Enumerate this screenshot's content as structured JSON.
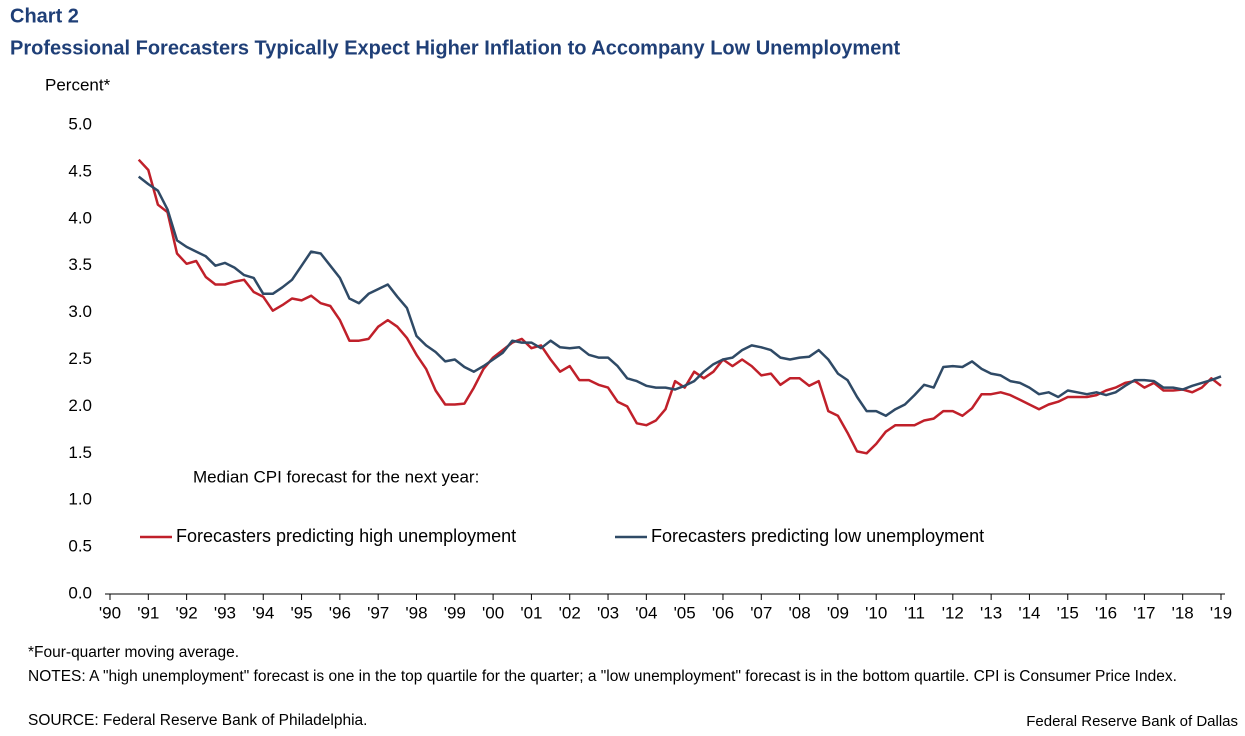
{
  "chart_data": {
    "type": "line",
    "title": "Chart 2",
    "subtitle": "Professional Forecasters Typically Expect Higher Inflation to Accompany Low Unemployment",
    "ylabel": "Percent*",
    "legend_title": "Median CPI forecast for the next year:",
    "footnotes": [
      "*Four-quarter moving average.",
      "NOTES: A \"high unemployment\"  forecast is one in the top quartile for the quarter; a \"low unemployment\"  forecast is in the bottom quartile. CPI is Consumer Price Index.",
      "SOURCE: Federal Reserve Bank of Philadelphia."
    ],
    "credit": "Federal Reserve Bank of Dallas",
    "x": [
      1990.75,
      1991,
      1991.25,
      1991.5,
      1991.75,
      1992,
      1992.25,
      1992.5,
      1992.75,
      1993,
      1993.25,
      1993.5,
      1993.75,
      1994,
      1994.25,
      1994.5,
      1994.75,
      1995,
      1995.25,
      1995.5,
      1995.75,
      1996,
      1996.25,
      1996.5,
      1996.75,
      1997,
      1997.25,
      1997.5,
      1997.75,
      1998,
      1998.25,
      1998.5,
      1998.75,
      1999,
      1999.25,
      1999.5,
      1999.75,
      2000,
      2000.25,
      2000.5,
      2000.75,
      2001,
      2001.25,
      2001.5,
      2001.75,
      2002,
      2002.25,
      2002.5,
      2002.75,
      2003,
      2003.25,
      2003.5,
      2003.75,
      2004,
      2004.25,
      2004.5,
      2004.75,
      2005,
      2005.25,
      2005.5,
      2005.75,
      2006,
      2006.25,
      2006.5,
      2006.75,
      2007,
      2007.25,
      2007.5,
      2007.75,
      2008,
      2008.25,
      2008.5,
      2008.75,
      2009,
      2009.25,
      2009.5,
      2009.75,
      2010,
      2010.25,
      2010.5,
      2010.75,
      2011,
      2011.25,
      2011.5,
      2011.75,
      2012,
      2012.25,
      2012.5,
      2012.75,
      2013,
      2013.25,
      2013.5,
      2013.75,
      2014,
      2014.25,
      2014.5,
      2014.75,
      2015,
      2015.25,
      2015.5,
      2015.75,
      2016,
      2016.25,
      2016.5,
      2016.75,
      2017,
      2017.25,
      2017.5,
      2017.75,
      2018,
      2018.25,
      2018.5,
      2018.75,
      2019
    ],
    "series": [
      {
        "name": "Forecasters predicting high unemployment",
        "color": "#c0202a",
        "values": [
          4.63,
          4.52,
          4.15,
          4.07,
          3.63,
          3.52,
          3.55,
          3.38,
          3.3,
          3.3,
          3.33,
          3.35,
          3.22,
          3.17,
          3.02,
          3.08,
          3.15,
          3.13,
          3.18,
          3.1,
          3.07,
          2.92,
          2.7,
          2.7,
          2.72,
          2.85,
          2.92,
          2.85,
          2.73,
          2.55,
          2.4,
          2.17,
          2.02,
          2.02,
          2.03,
          2.2,
          2.4,
          2.52,
          2.6,
          2.68,
          2.72,
          2.62,
          2.65,
          2.5,
          2.37,
          2.43,
          2.28,
          2.28,
          2.23,
          2.2,
          2.05,
          2.0,
          1.82,
          1.8,
          1.85,
          1.97,
          2.27,
          2.2,
          2.37,
          2.3,
          2.37,
          2.5,
          2.43,
          2.5,
          2.43,
          2.33,
          2.35,
          2.23,
          2.3,
          2.3,
          2.22,
          2.27,
          1.95,
          1.9,
          1.72,
          1.52,
          1.5,
          1.6,
          1.73,
          1.8,
          1.8,
          1.8,
          1.85,
          1.87,
          1.95,
          1.95,
          1.9,
          1.98,
          2.13,
          2.13,
          2.15,
          2.12,
          2.07,
          2.02,
          1.97,
          2.02,
          2.05,
          2.1,
          2.1,
          2.1,
          2.12,
          2.17,
          2.2,
          2.25,
          2.27,
          2.2,
          2.25,
          2.17,
          2.17,
          2.18,
          2.15,
          2.2,
          2.3,
          2.22
        ]
      },
      {
        "name": "Forecasters predicting low unemployment",
        "color": "#2f4a66",
        "values": [
          4.45,
          4.37,
          4.3,
          4.1,
          3.77,
          3.7,
          3.65,
          3.6,
          3.5,
          3.53,
          3.48,
          3.4,
          3.37,
          3.2,
          3.2,
          3.27,
          3.35,
          3.5,
          3.65,
          3.63,
          3.5,
          3.37,
          3.15,
          3.1,
          3.2,
          3.25,
          3.3,
          3.17,
          3.05,
          2.75,
          2.65,
          2.58,
          2.48,
          2.5,
          2.42,
          2.37,
          2.43,
          2.5,
          2.57,
          2.7,
          2.68,
          2.68,
          2.62,
          2.7,
          2.63,
          2.62,
          2.63,
          2.55,
          2.52,
          2.52,
          2.43,
          2.3,
          2.27,
          2.22,
          2.2,
          2.2,
          2.18,
          2.22,
          2.27,
          2.37,
          2.45,
          2.5,
          2.52,
          2.6,
          2.65,
          2.63,
          2.6,
          2.52,
          2.5,
          2.52,
          2.53,
          2.6,
          2.5,
          2.35,
          2.28,
          2.1,
          1.95,
          1.95,
          1.9,
          1.97,
          2.02,
          2.12,
          2.23,
          2.2,
          2.42,
          2.43,
          2.42,
          2.48,
          2.4,
          2.35,
          2.33,
          2.27,
          2.25,
          2.2,
          2.13,
          2.15,
          2.1,
          2.17,
          2.15,
          2.13,
          2.15,
          2.12,
          2.15,
          2.22,
          2.28,
          2.28,
          2.27,
          2.2,
          2.2,
          2.18,
          2.22,
          2.25,
          2.28,
          2.32
        ]
      }
    ],
    "xlim": [
      1990,
      2019
    ],
    "xticks": [
      {
        "value": 1990,
        "label": "'90"
      },
      {
        "value": 1991,
        "label": "'91"
      },
      {
        "value": 1992,
        "label": "'92"
      },
      {
        "value": 1993,
        "label": "'93"
      },
      {
        "value": 1994,
        "label": "'94"
      },
      {
        "value": 1995,
        "label": "'95"
      },
      {
        "value": 1996,
        "label": "'96"
      },
      {
        "value": 1997,
        "label": "'97"
      },
      {
        "value": 1998,
        "label": "'98"
      },
      {
        "value": 1999,
        "label": "'99"
      },
      {
        "value": 2000,
        "label": "'00"
      },
      {
        "value": 2001,
        "label": "'01"
      },
      {
        "value": 2002,
        "label": "'02"
      },
      {
        "value": 2003,
        "label": "'03"
      },
      {
        "value": 2004,
        "label": "'04"
      },
      {
        "value": 2005,
        "label": "'05"
      },
      {
        "value": 2006,
        "label": "'06"
      },
      {
        "value": 2007,
        "label": "'07"
      },
      {
        "value": 2008,
        "label": "'08"
      },
      {
        "value": 2009,
        "label": "'09"
      },
      {
        "value": 2010,
        "label": "'10"
      },
      {
        "value": 2011,
        "label": "'11"
      },
      {
        "value": 2012,
        "label": "'12"
      },
      {
        "value": 2013,
        "label": "'13"
      },
      {
        "value": 2014,
        "label": "'14"
      },
      {
        "value": 2015,
        "label": "'15"
      },
      {
        "value": 2016,
        "label": "'16"
      },
      {
        "value": 2017,
        "label": "'17"
      },
      {
        "value": 2018,
        "label": "'18"
      },
      {
        "value": 2019,
        "label": "'19"
      }
    ],
    "ylim": [
      0,
      5
    ],
    "yticks": [
      {
        "value": 0,
        "label": "0.0"
      },
      {
        "value": 0.5,
        "label": "0.5"
      },
      {
        "value": 1,
        "label": "1.0"
      },
      {
        "value": 1.5,
        "label": "1.5"
      },
      {
        "value": 2,
        "label": "2.0"
      },
      {
        "value": 2.5,
        "label": "2.5"
      },
      {
        "value": 3,
        "label": "3.0"
      },
      {
        "value": 3.5,
        "label": "3.5"
      },
      {
        "value": 4,
        "label": "4.0"
      },
      {
        "value": 4.5,
        "label": "4.5"
      },
      {
        "value": 5,
        "label": "5.0"
      }
    ],
    "grid": false
  }
}
